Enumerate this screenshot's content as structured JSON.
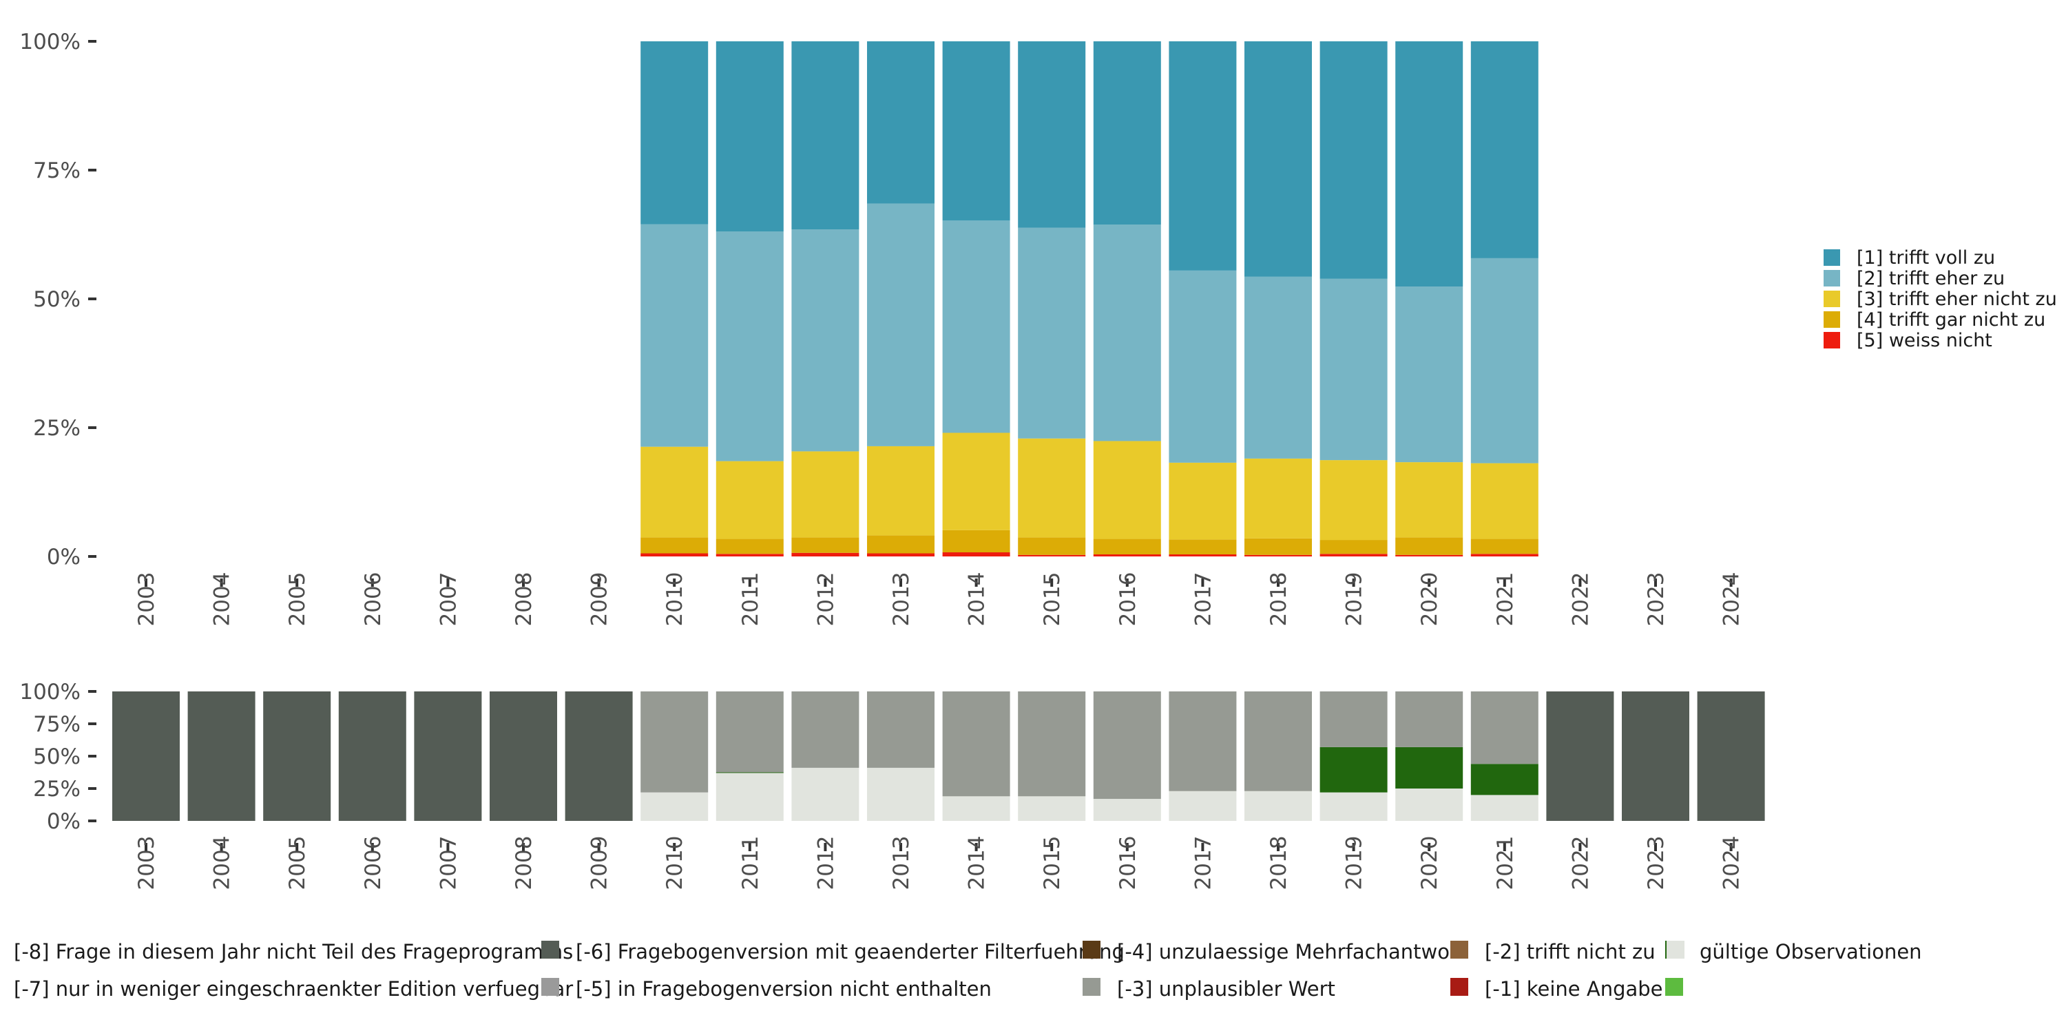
{
  "chart_data": [
    {
      "type": "bar",
      "stacked": true,
      "normalized": true,
      "title": "",
      "xlabel": "",
      "ylabel": "",
      "ylim": [
        0,
        1
      ],
      "ytick_labels": [
        "0%",
        "25%",
        "50%",
        "75%",
        "100%"
      ],
      "categories": [
        "2003",
        "2004",
        "2005",
        "2006",
        "2007",
        "2008",
        "2009",
        "2010",
        "2011",
        "2012",
        "2013",
        "2014",
        "2015",
        "2016",
        "2017",
        "2018",
        "2019",
        "2020",
        "2021",
        "2022",
        "2023",
        "2024"
      ],
      "legend_position": "right",
      "series": [
        {
          "name": "[5] weiss nicht",
          "color": "#ee1c0e",
          "values": [
            null,
            null,
            null,
            null,
            null,
            null,
            null,
            0.006,
            0.005,
            0.007,
            0.006,
            0.008,
            0.003,
            0.004,
            0.004,
            0.003,
            0.005,
            0.003,
            0.005,
            null,
            null,
            null
          ]
        },
        {
          "name": "[4] trifft gar nicht zu",
          "color": "#dcac06",
          "values": [
            null,
            null,
            null,
            null,
            null,
            null,
            null,
            0.031,
            0.029,
            0.03,
            0.035,
            0.043,
            0.034,
            0.03,
            0.029,
            0.032,
            0.027,
            0.034,
            0.029,
            null,
            null,
            null
          ]
        },
        {
          "name": "[3] trifft eher nicht zu",
          "color": "#e9ca2a",
          "values": [
            null,
            null,
            null,
            null,
            null,
            null,
            null,
            0.176,
            0.151,
            0.167,
            0.173,
            0.189,
            0.192,
            0.19,
            0.149,
            0.155,
            0.155,
            0.146,
            0.147,
            null,
            null,
            null
          ]
        },
        {
          "name": "[2] trifft eher zu",
          "color": "#77b5c5",
          "values": [
            null,
            null,
            null,
            null,
            null,
            null,
            null,
            0.432,
            0.446,
            0.431,
            0.471,
            0.412,
            0.409,
            0.42,
            0.373,
            0.353,
            0.352,
            0.341,
            0.398,
            null,
            null,
            null
          ]
        },
        {
          "name": "[1] trifft voll zu",
          "color": "#3a98b1",
          "values": [
            null,
            null,
            null,
            null,
            null,
            null,
            null,
            0.355,
            0.369,
            0.365,
            0.315,
            0.348,
            0.362,
            0.356,
            0.445,
            0.457,
            0.461,
            0.476,
            0.421,
            null,
            null,
            null
          ]
        }
      ]
    },
    {
      "type": "bar",
      "stacked": true,
      "normalized": true,
      "title": "",
      "xlabel": "",
      "ylabel": "",
      "ylim": [
        0,
        1
      ],
      "ytick_labels": [
        "0%",
        "25%",
        "50%",
        "75%",
        "100%"
      ],
      "categories": [
        "2003",
        "2004",
        "2005",
        "2006",
        "2007",
        "2008",
        "2009",
        "2010",
        "2011",
        "2012",
        "2013",
        "2014",
        "2015",
        "2016",
        "2017",
        "2018",
        "2019",
        "2020",
        "2021",
        "2022",
        "2023",
        "2024"
      ],
      "legend_position": "bottom",
      "series": [
        {
          "name": "gültige Observationen",
          "color": "#e1e4de",
          "values": [
            0,
            0,
            0,
            0,
            0,
            0,
            0,
            0.22,
            0.37,
            0.41,
            0.41,
            0.19,
            0.19,
            0.17,
            0.23,
            0.23,
            0.22,
            0.25,
            0.2,
            0,
            0,
            0
          ]
        },
        {
          "name": "[-1] keine Angabe",
          "color": "#5dbb3f",
          "values": [
            0,
            0,
            0,
            0,
            0,
            0,
            0,
            0,
            0,
            0,
            0,
            0,
            0,
            0,
            0,
            0,
            0,
            0,
            0,
            0,
            0,
            0
          ]
        },
        {
          "name": "[-2] trifft nicht zu",
          "color": "#21670e",
          "values": [
            0,
            0,
            0,
            0,
            0,
            0,
            0,
            0,
            0.005,
            0,
            0,
            0,
            0,
            0,
            0,
            0,
            0.35,
            0.32,
            0.24,
            0,
            0,
            0
          ]
        },
        {
          "name": "[-3] unplausibler Wert",
          "color": "#a81b14",
          "values": [
            0,
            0,
            0,
            0,
            0,
            0,
            0,
            0,
            0,
            0,
            0,
            0,
            0,
            0,
            0,
            0,
            0,
            0,
            0,
            0,
            0,
            0
          ]
        },
        {
          "name": "[-4] unzulaessige Mehrfachantwort",
          "color": "#8c6239",
          "values": [
            0,
            0,
            0,
            0,
            0,
            0,
            0,
            0,
            0,
            0,
            0,
            0,
            0,
            0,
            0,
            0,
            0,
            0,
            0,
            0,
            0,
            0
          ]
        },
        {
          "name": "[-5] in Fragebogenversion nicht enthalten",
          "color": "#969a93",
          "values": [
            0,
            0,
            0,
            0,
            0,
            0,
            0,
            0.78,
            0.625,
            0.59,
            0.59,
            0.81,
            0.81,
            0.83,
            0.77,
            0.77,
            0.43,
            0.43,
            0.56,
            0,
            0,
            0
          ]
        },
        {
          "name": "[-6] Fragebogenversion mit geaenderter Filterfuehrung",
          "color": "#5a3a16",
          "values": [
            0,
            0,
            0,
            0,
            0,
            0,
            0,
            0,
            0,
            0,
            0,
            0,
            0,
            0,
            0,
            0,
            0,
            0,
            0,
            0,
            0,
            0
          ]
        },
        {
          "name": "[-7] nur in weniger eingeschraenkter Edition verfuegbar",
          "color": "#9a9a9a",
          "values": [
            0,
            0,
            0,
            0,
            0,
            0,
            0,
            0,
            0,
            0,
            0,
            0,
            0,
            0,
            0,
            0,
            0,
            0,
            0,
            0,
            0,
            0
          ]
        },
        {
          "name": "[-8] Frage in diesem Jahr nicht Teil des Frageprogramms",
          "color": "#545c55",
          "values": [
            1,
            1,
            1,
            1,
            1,
            1,
            1,
            0,
            0,
            0,
            0,
            0,
            0,
            0,
            0,
            0,
            0,
            0,
            0,
            1,
            1,
            1
          ]
        }
      ]
    }
  ],
  "legend_top": {
    "items": [
      "[1] trifft voll zu",
      "[2] trifft eher zu",
      "[3] trifft eher nicht zu",
      "[4] trifft gar nicht zu",
      "[5] weiss nicht"
    ],
    "colors": [
      "#3a98b1",
      "#77b5c5",
      "#e9ca2a",
      "#dcac06",
      "#ee1c0e"
    ]
  },
  "legend_bottom": {
    "items": [
      "[-8] Frage in diesem Jahr nicht Teil des Frageprogramms",
      "[-7] nur in weniger eingeschraenkter Edition verfuegbar",
      "[-6] Fragebogenversion mit geaenderter Filterfuehrung",
      "[-5] in Fragebogenversion nicht enthalten",
      "[-4] unzulaessige Mehrfachantwort",
      "[-3] unplausibler Wert",
      "[-2] trifft nicht zu",
      "[-1] keine Angabe",
      "gültige Observationen"
    ],
    "colors": [
      "#545c55",
      "#9a9a9a",
      "#5a3a16",
      "#969a93",
      "#8c6239",
      "#a81b14",
      "#21670e",
      "#5dbb3f",
      "#e1e4de"
    ]
  }
}
